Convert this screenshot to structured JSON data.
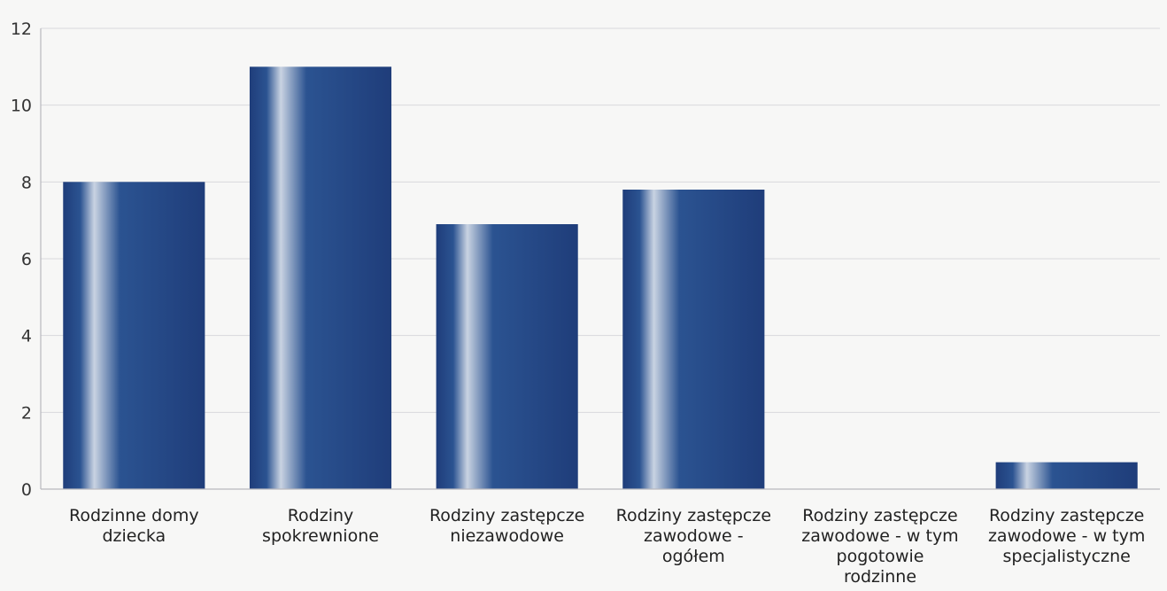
{
  "chart_data": {
    "type": "bar",
    "title": "",
    "xlabel": "",
    "ylabel": "",
    "ylim": [
      0,
      12
    ],
    "yticks": [
      0,
      2,
      4,
      6,
      8,
      10,
      12
    ],
    "grid": true,
    "legend": "none",
    "categories": [
      "Rodzinne domy dziecka",
      "Rodziny spokrewnione",
      "Rodziny zastępcze niezawodowe",
      "Rodziny zastępcze zawodowe - ogółem",
      "Rodziny zastępcze zawodowe - w tym pogotowie rodzinne",
      "Rodziny zastępcze zawodowe - w tym specjalistyczne"
    ],
    "category_lines": [
      [
        "Rodzinne domy",
        "dziecka"
      ],
      [
        "Rodziny",
        "spokrewnione"
      ],
      [
        "Rodziny zastępcze",
        "niezawodowe"
      ],
      [
        "Rodziny zastępcze",
        "zawodowe -",
        "ogółem"
      ],
      [
        "Rodziny zastępcze",
        "zawodowe - w tym",
        "pogotowie",
        "rodzinne"
      ],
      [
        "Rodziny zastępcze",
        "zawodowe - w tym",
        "specjalistyczne"
      ]
    ],
    "values": [
      8,
      11,
      6.9,
      7.8,
      0,
      0.7
    ],
    "colors": {
      "bar_dark": "#1f3d7a",
      "bar_mid": "#2b5391",
      "bar_light": "#c9d3e2",
      "grid": "#d9d9dc",
      "axis": "#b8b8be"
    }
  }
}
